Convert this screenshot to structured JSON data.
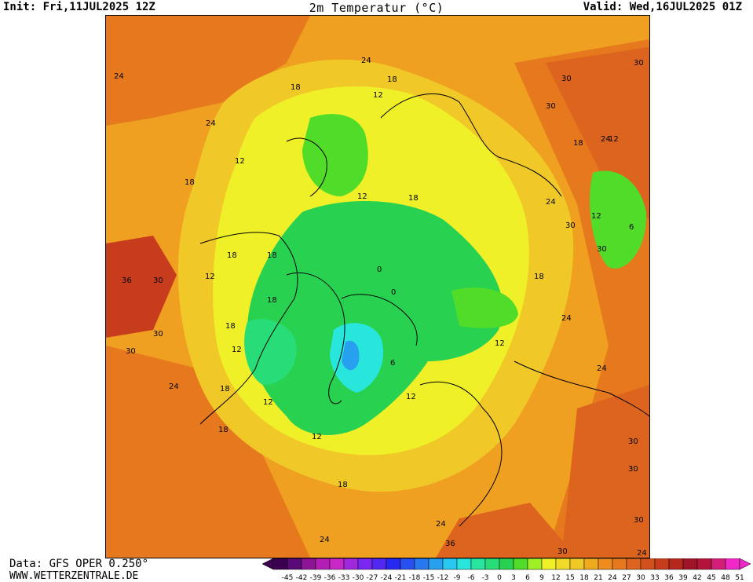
{
  "header": {
    "init": "Init: Fri,11JUL2025 12Z",
    "title": "2m Temperatur (°C)",
    "valid": "Valid: Wed,16JUL2025 01Z"
  },
  "footer": {
    "data_source": "Data: GFS OPER 0.250°",
    "website": "WWW.WETTERZENTRALE.DE"
  },
  "map": {
    "projection": "polar stereographic, northern hemisphere",
    "contour_labels": [
      "24",
      "18",
      "12",
      "0",
      "6",
      "30",
      "36"
    ]
  },
  "colorbar": {
    "unit": "°C",
    "ticks": [
      "-45",
      "-42",
      "-39",
      "-36",
      "-33",
      "-30",
      "-27",
      "-24",
      "-21",
      "-18",
      "-15",
      "-12",
      "-9",
      "-6",
      "-3",
      "0",
      "3",
      "6",
      "9",
      "12",
      "15",
      "18",
      "21",
      "24",
      "27",
      "30",
      "33",
      "36",
      "39",
      "42",
      "45",
      "48",
      "51"
    ],
    "colors": [
      "#3c0050",
      "#5a0a78",
      "#8c1496",
      "#b41eb4",
      "#c828c8",
      "#a028dc",
      "#7828f0",
      "#5028f0",
      "#2828f0",
      "#2850f0",
      "#2878f0",
      "#28a0f0",
      "#28c8f0",
      "#28e6dc",
      "#28e6a0",
      "#28dc78",
      "#28d250",
      "#50dc28",
      "#a0f028",
      "#f0f028",
      "#f0dc28",
      "#f0c828",
      "#f0aa1e",
      "#f08c1e",
      "#e6781e",
      "#dc641e",
      "#d2501e",
      "#c83c1e",
      "#b4281e",
      "#a01428",
      "#b4143c",
      "#d21e78",
      "#f028c8"
    ]
  }
}
